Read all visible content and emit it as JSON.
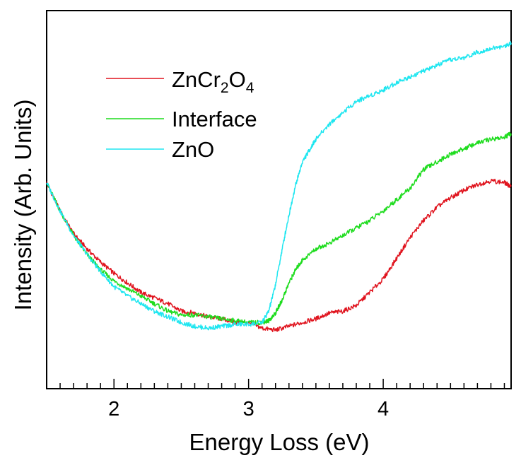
{
  "chart_data": {
    "type": "line",
    "xlabel": "Energy Loss (eV)",
    "ylabel": "Intensity (Arb. Units)",
    "xlim": [
      1.5,
      4.95
    ],
    "ylim": [
      0,
      1
    ],
    "x_ticks": [
      2,
      3,
      4
    ],
    "x_tick_labels": [
      "2",
      "3",
      "4"
    ],
    "y_tick_labels_shown": false,
    "grid": false,
    "legend_position": "top-left",
    "legend": [
      {
        "text": "ZnCr",
        "sub1": "2",
        "mid": "O",
        "sub2": "4"
      },
      {
        "text": "Interface"
      },
      {
        "text": "ZnO"
      }
    ],
    "series": [
      {
        "name": "ZnCr2O4",
        "color": "#e0141e",
        "x": [
          1.5,
          1.6,
          1.7,
          1.8,
          1.9,
          2.0,
          2.1,
          2.2,
          2.3,
          2.4,
          2.5,
          2.6,
          2.7,
          2.8,
          2.9,
          3.0,
          3.1,
          3.2,
          3.3,
          3.4,
          3.5,
          3.6,
          3.7,
          3.8,
          3.9,
          4.0,
          4.1,
          4.2,
          4.3,
          4.4,
          4.5,
          4.6,
          4.7,
          4.8,
          4.9,
          4.95
        ],
        "y": [
          0.545,
          0.47,
          0.41,
          0.37,
          0.335,
          0.305,
          0.28,
          0.255,
          0.24,
          0.225,
          0.205,
          0.2,
          0.19,
          0.185,
          0.175,
          0.175,
          0.16,
          0.155,
          0.165,
          0.175,
          0.185,
          0.2,
          0.205,
          0.22,
          0.255,
          0.29,
          0.345,
          0.4,
          0.445,
          0.48,
          0.505,
          0.525,
          0.54,
          0.55,
          0.545,
          0.535
        ]
      },
      {
        "name": "Interface",
        "color": "#1edc1e",
        "x": [
          1.5,
          1.6,
          1.7,
          1.8,
          1.9,
          2.0,
          2.1,
          2.2,
          2.3,
          2.4,
          2.5,
          2.6,
          2.7,
          2.8,
          2.9,
          3.0,
          3.1,
          3.15,
          3.2,
          3.25,
          3.3,
          3.35,
          3.4,
          3.5,
          3.6,
          3.7,
          3.8,
          3.9,
          4.0,
          4.1,
          4.2,
          4.3,
          4.4,
          4.5,
          4.6,
          4.7,
          4.8,
          4.9,
          4.95
        ],
        "y": [
          0.545,
          0.47,
          0.405,
          0.355,
          0.315,
          0.285,
          0.265,
          0.245,
          0.225,
          0.205,
          0.195,
          0.195,
          0.19,
          0.185,
          0.18,
          0.175,
          0.175,
          0.18,
          0.2,
          0.235,
          0.28,
          0.315,
          0.34,
          0.37,
          0.385,
          0.405,
          0.425,
          0.445,
          0.47,
          0.5,
          0.53,
          0.58,
          0.6,
          0.62,
          0.635,
          0.65,
          0.66,
          0.665,
          0.675
        ]
      },
      {
        "name": "ZnO",
        "color": "#1ee6f0",
        "x": [
          1.5,
          1.6,
          1.7,
          1.8,
          1.9,
          2.0,
          2.1,
          2.2,
          2.3,
          2.4,
          2.5,
          2.6,
          2.7,
          2.8,
          2.9,
          3.0,
          3.1,
          3.15,
          3.2,
          3.25,
          3.3,
          3.35,
          3.4,
          3.45,
          3.5,
          3.6,
          3.7,
          3.8,
          3.9,
          4.0,
          4.1,
          4.2,
          4.3,
          4.4,
          4.5,
          4.6,
          4.7,
          4.8,
          4.9,
          4.95
        ],
        "y": [
          0.545,
          0.47,
          0.405,
          0.355,
          0.31,
          0.27,
          0.245,
          0.225,
          0.205,
          0.19,
          0.175,
          0.165,
          0.16,
          0.165,
          0.17,
          0.17,
          0.175,
          0.205,
          0.275,
          0.37,
          0.46,
          0.54,
          0.6,
          0.63,
          0.66,
          0.7,
          0.73,
          0.76,
          0.775,
          0.79,
          0.81,
          0.825,
          0.84,
          0.855,
          0.87,
          0.875,
          0.89,
          0.9,
          0.905,
          0.915
        ]
      }
    ]
  }
}
